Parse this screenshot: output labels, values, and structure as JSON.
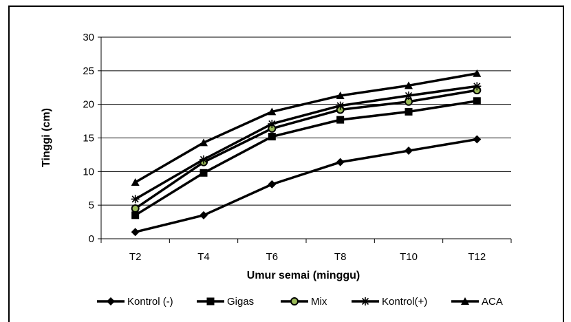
{
  "chart_data": {
    "type": "line",
    "categories": [
      "T2",
      "T4",
      "T6",
      "T8",
      "T10",
      "T12"
    ],
    "series": [
      {
        "name": "Kontrol (-)",
        "marker": "diamond",
        "values": [
          1.0,
          3.5,
          8.1,
          11.4,
          13.1,
          14.8
        ]
      },
      {
        "name": "Gigas",
        "marker": "square",
        "values": [
          3.5,
          9.8,
          15.2,
          17.7,
          18.9,
          20.5
        ]
      },
      {
        "name": "Mix",
        "marker": "circle",
        "values": [
          4.5,
          11.4,
          16.4,
          19.2,
          20.4,
          22.1
        ]
      },
      {
        "name": "Kontrol(+)",
        "marker": "star",
        "values": [
          5.9,
          11.8,
          17.1,
          19.8,
          21.3,
          22.7
        ]
      },
      {
        "name": "ACA",
        "marker": "triangle",
        "values": [
          8.4,
          14.3,
          18.9,
          21.3,
          22.8,
          24.6
        ]
      }
    ],
    "xlabel": "Umur semai (minggu)",
    "ylabel": "Tinggi (cm)",
    "ylim": [
      0,
      30
    ],
    "yticks": [
      0,
      5,
      10,
      15,
      20,
      25,
      30
    ],
    "grid": "horizontal",
    "legend": "bottom",
    "line_color": "#000000",
    "mix_marker_fill": "#9bbb59"
  }
}
